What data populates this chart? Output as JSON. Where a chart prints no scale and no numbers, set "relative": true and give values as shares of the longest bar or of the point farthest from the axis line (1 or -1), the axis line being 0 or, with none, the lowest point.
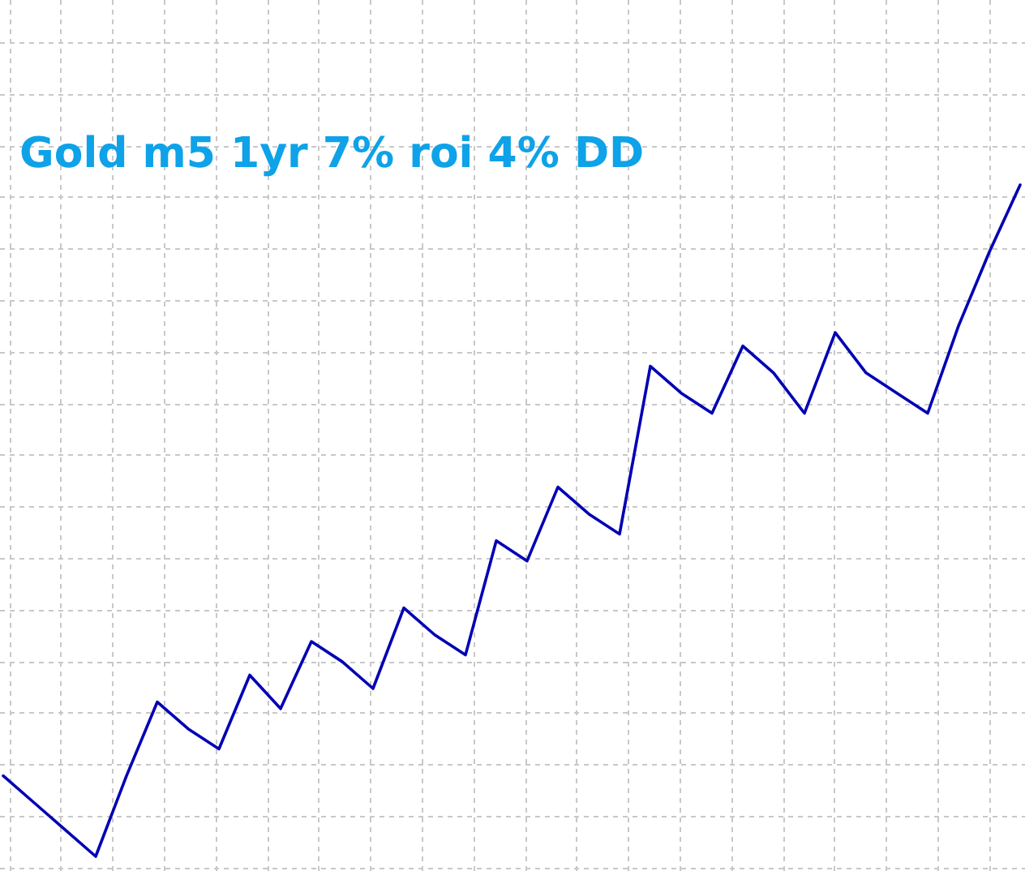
{
  "chart_data": {
    "type": "line",
    "title": "Gold m5 1yr 7% roi 4% DD",
    "categories": [
      null,
      null,
      null,
      null,
      null,
      null,
      null,
      null,
      null,
      null,
      null,
      null,
      null,
      null,
      null,
      null,
      null,
      null,
      null,
      null,
      null,
      null,
      null,
      null,
      null,
      null,
      null,
      null,
      null,
      null,
      null,
      null,
      null,
      null
    ],
    "series": [
      {
        "color": "#0000b4",
        "values": [
          0.12,
          0.08,
          0.04,
          0,
          0.12,
          0.23,
          0.19,
          0.16,
          0.27,
          0.22,
          0.32,
          0.29,
          0.25,
          0.37,
          0.33,
          0.3,
          0.47,
          0.44,
          0.55,
          0.51,
          0.48,
          0.73,
          0.69,
          0.66,
          0.76,
          0.72,
          0.66,
          0.78,
          0.72,
          0.69,
          0.66,
          0.79,
          0.9,
          1
        ]
      }
    ],
    "relative": true,
    "grid": true,
    "marker": "none"
  }
}
